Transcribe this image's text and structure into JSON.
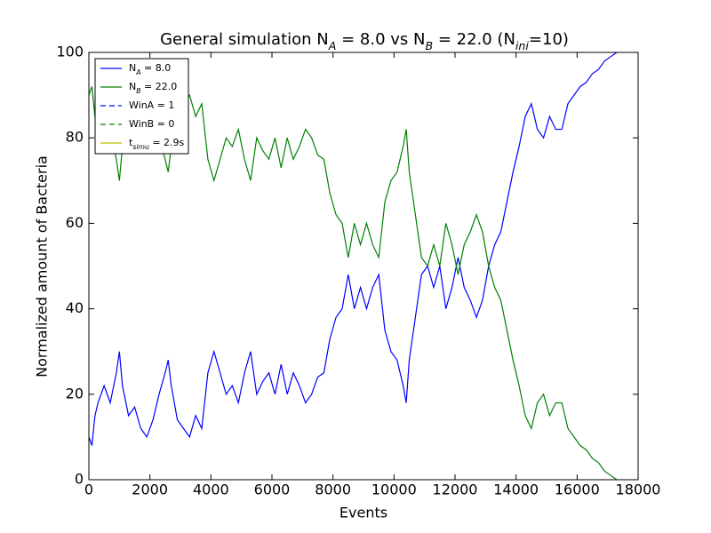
{
  "chart_data": {
    "type": "line",
    "title": "General simulation N_{A} = 8.0 vs N_{B} = 22.0 (N_{ini}=10)",
    "x_label": "Events",
    "y_label": "Normalized amount of Bacteria",
    "x": [
      0,
      100,
      200,
      300,
      500,
      700,
      900,
      1000,
      1100,
      1300,
      1500,
      1700,
      1900,
      2100,
      2300,
      2500,
      2600,
      2700,
      2900,
      3100,
      3300,
      3500,
      3700,
      3900,
      4100,
      4300,
      4500,
      4700,
      4900,
      5100,
      5300,
      5500,
      5700,
      5900,
      6100,
      6300,
      6500,
      6700,
      6900,
      7100,
      7300,
      7500,
      7700,
      7900,
      8100,
      8300,
      8500,
      8700,
      8900,
      9100,
      9300,
      9500,
      9700,
      9900,
      10100,
      10300,
      10400,
      10500,
      10700,
      10900,
      11100,
      11300,
      11500,
      11700,
      11900,
      12100,
      12300,
      12500,
      12700,
      12900,
      13100,
      13300,
      13500,
      13700,
      13900,
      14100,
      14300,
      14500,
      14700,
      14900,
      15100,
      15300,
      15500,
      15700,
      15900,
      16100,
      16300,
      16500,
      16700,
      16900,
      17100,
      17300
    ],
    "series": [
      {
        "name": "N_{A} = 8.0",
        "color": "#0000ff",
        "values": [
          10,
          8,
          15,
          18,
          22,
          18,
          25,
          30,
          22,
          15,
          17,
          12,
          10,
          14,
          20,
          25,
          28,
          22,
          14,
          12,
          10,
          15,
          12,
          25,
          30,
          25,
          20,
          22,
          18,
          25,
          30,
          20,
          23,
          25,
          20,
          27,
          20,
          25,
          22,
          18,
          20,
          24,
          25,
          33,
          38,
          40,
          48,
          40,
          45,
          40,
          45,
          48,
          35,
          30,
          28,
          22,
          18,
          28,
          38,
          48,
          50,
          45,
          50,
          40,
          45,
          52,
          45,
          42,
          38,
          42,
          50,
          55,
          58,
          65,
          72,
          78,
          85,
          88,
          82,
          80,
          85,
          82,
          82,
          88,
          90,
          92,
          93,
          95,
          96,
          98,
          99,
          100
        ]
      },
      {
        "name": "N_{B} = 22.0",
        "color": "#008000",
        "values": [
          90,
          92,
          85,
          82,
          78,
          82,
          75,
          70,
          78,
          85,
          83,
          88,
          90,
          86,
          80,
          75,
          72,
          78,
          86,
          88,
          90,
          85,
          88,
          75,
          70,
          75,
          80,
          78,
          82,
          75,
          70,
          80,
          77,
          75,
          80,
          73,
          80,
          75,
          78,
          82,
          80,
          76,
          75,
          67,
          62,
          60,
          52,
          60,
          55,
          60,
          55,
          52,
          65,
          70,
          72,
          78,
          82,
          72,
          62,
          52,
          50,
          55,
          50,
          60,
          55,
          48,
          55,
          58,
          62,
          58,
          50,
          45,
          42,
          35,
          28,
          22,
          15,
          12,
          18,
          20,
          15,
          18,
          18,
          12,
          10,
          8,
          7,
          5,
          4,
          2,
          1,
          0
        ]
      }
    ],
    "legend_extra": [
      {
        "name": "WinA = 1",
        "color": "#0000ff",
        "dashed": true
      },
      {
        "name": "WinB = 0",
        "color": "#008000",
        "dashed": true
      },
      {
        "name": "t_{simu} = 2.9s",
        "color": "#bfbf00",
        "dashed": false
      }
    ],
    "xlim": [
      0,
      18000
    ],
    "xticks": [
      0,
      2000,
      4000,
      6000,
      8000,
      10000,
      12000,
      14000,
      16000,
      18000
    ],
    "ylim": [
      0,
      100
    ],
    "yticks": [
      0,
      20,
      40,
      60,
      80,
      100
    ],
    "legend": "upper left"
  }
}
